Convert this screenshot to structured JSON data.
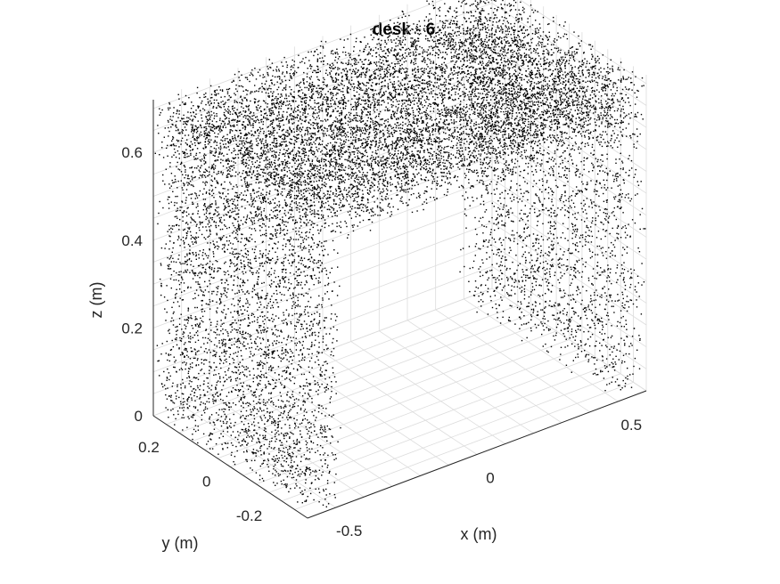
{
  "chart_data": {
    "type": "scatter",
    "title": "desk - 6",
    "xlabel": "x (m)",
    "ylabel": "y (m)",
    "zlabel": "z (m)",
    "x_ticks": [
      "-0.5",
      "0",
      "0.5"
    ],
    "y_ticks": [
      "-0.2",
      "0",
      "0.2"
    ],
    "z_ticks": [
      "0",
      "0.2",
      "0.4",
      "0.6"
    ],
    "xlim": [
      -0.6,
      0.6
    ],
    "ylim": [
      -0.3,
      0.3
    ],
    "zlim": [
      0,
      0.72
    ],
    "grid": true,
    "point_color": "#000000",
    "series": [
      {
        "shape": "desk point cloud",
        "top_surface": {
          "x": [
            -0.6,
            0.6
          ],
          "y": [
            -0.3,
            0.3
          ],
          "z": [
            0.6,
            0.72
          ]
        },
        "left_leg": {
          "x": [
            -0.6,
            -0.48
          ],
          "y": [
            -0.3,
            0.3
          ],
          "z": [
            0,
            0.6
          ]
        },
        "right_leg": {
          "x": [
            0.48,
            0.6
          ],
          "y": [
            -0.3,
            0.3
          ],
          "z": [
            0,
            0.6
          ]
        }
      }
    ]
  }
}
